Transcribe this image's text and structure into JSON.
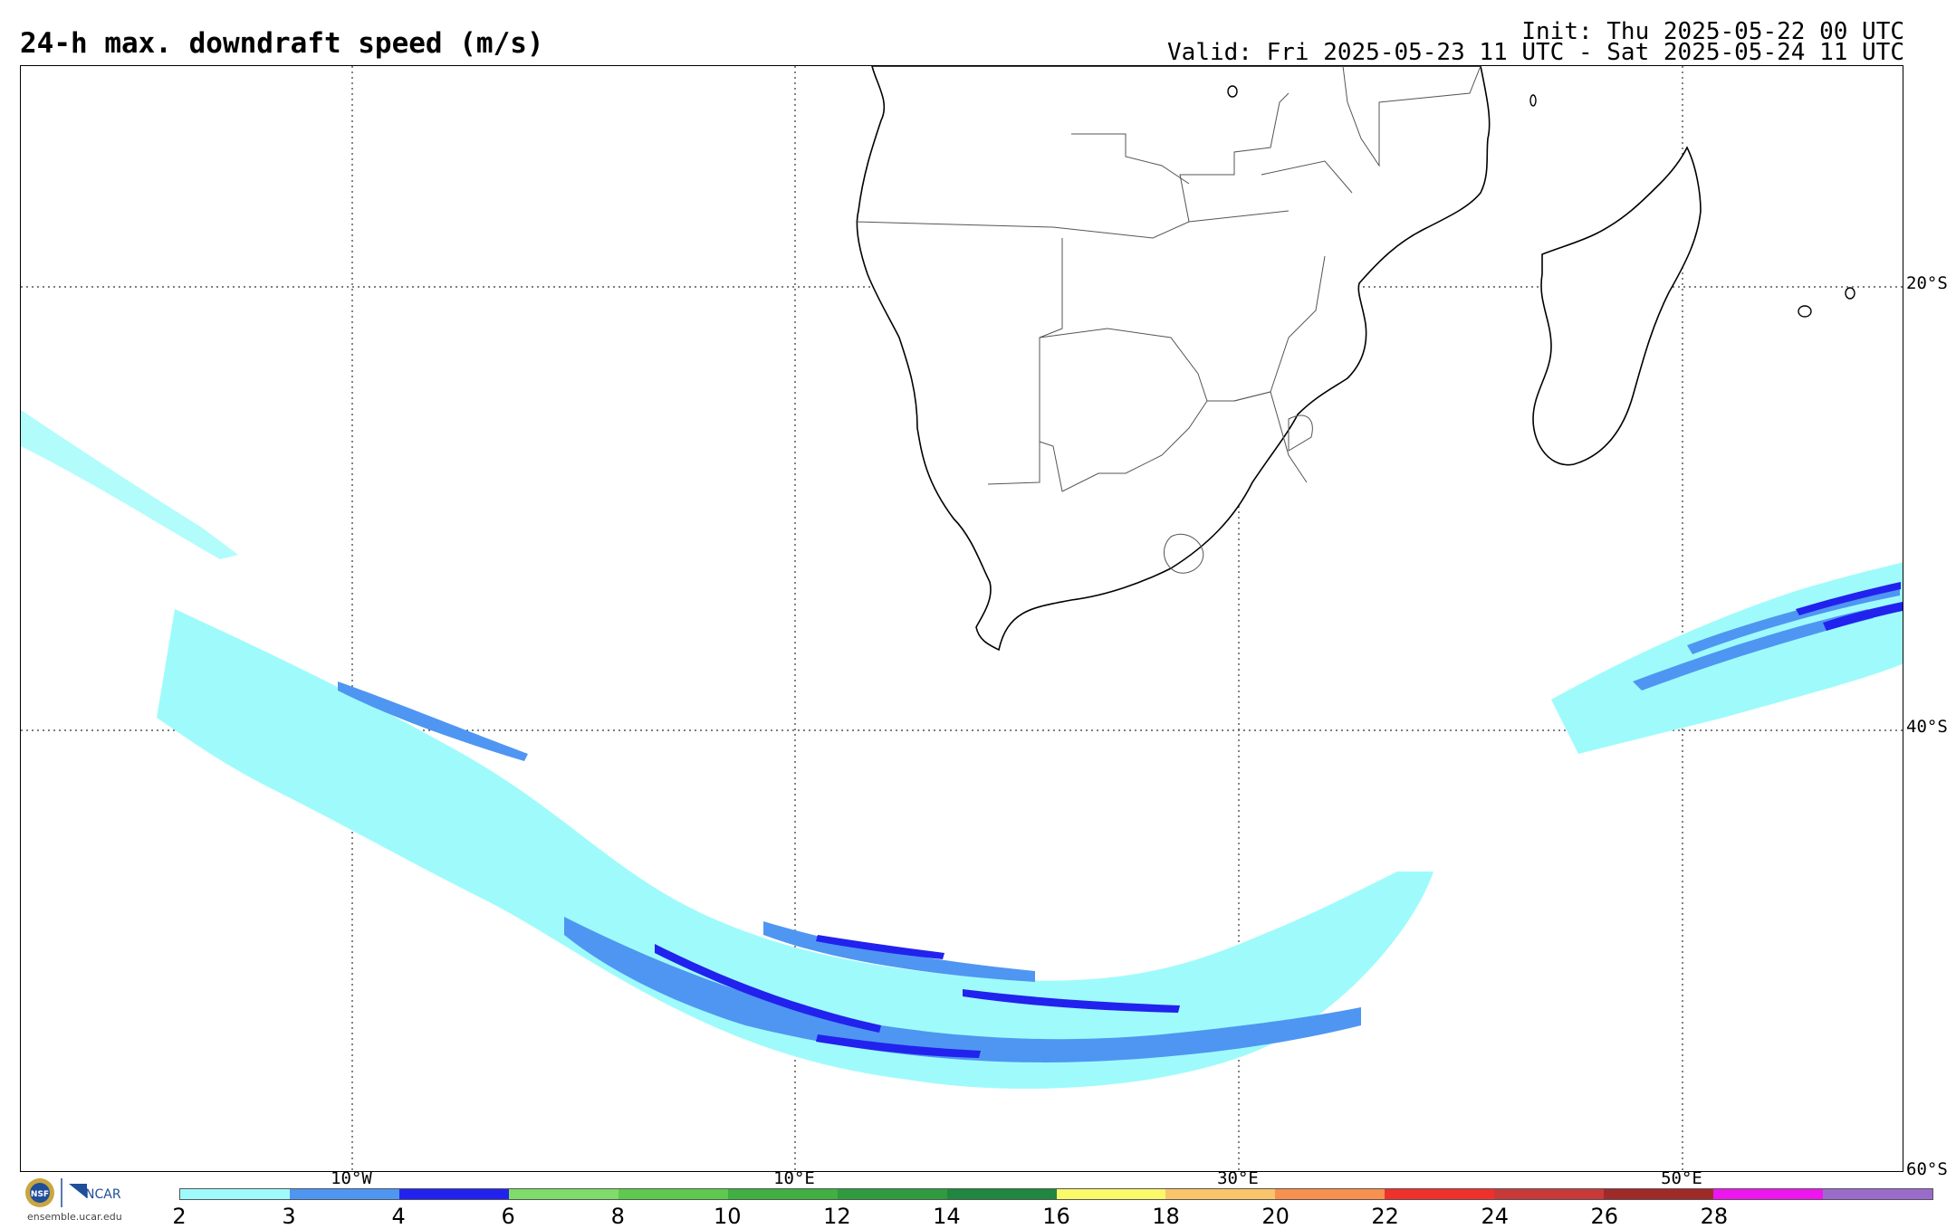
{
  "header": {
    "title": "24-h max. downdraft speed (m/s)",
    "init": "Init: Thu 2025-05-22 00 UTC",
    "valid": "Valid: Fri 2025-05-23 11 UTC - Sat 2025-05-24 11 UTC"
  },
  "map": {
    "projection": "cylindrical",
    "lat_labels": [
      "20°S",
      "40°S",
      "60°S"
    ],
    "lon_labels": [
      "10°W",
      "10°E",
      "30°E",
      "50°E"
    ],
    "field": "24-h max. downdraft speed",
    "units": "m/s"
  },
  "colorbar": {
    "ticks": [
      "2",
      "3",
      "4",
      "6",
      "8",
      "10",
      "12",
      "14",
      "16",
      "18",
      "20",
      "22",
      "24",
      "26",
      "28"
    ],
    "colors": [
      "#9ffbfb",
      "#4f96f2",
      "#2222ee",
      "#7fdc6a",
      "#5fc94f",
      "#3fb041",
      "#2f9b3f",
      "#1f8740",
      "#f9f96a",
      "#f9c46a",
      "#f8904f",
      "#f0302a",
      "#c83a3a",
      "#a02a2a",
      "#ee16ee",
      "#9b6bcc"
    ]
  },
  "logo": {
    "left_text": "NSF",
    "right_text": "NCAR",
    "url": "ensemble.ucar.edu"
  }
}
